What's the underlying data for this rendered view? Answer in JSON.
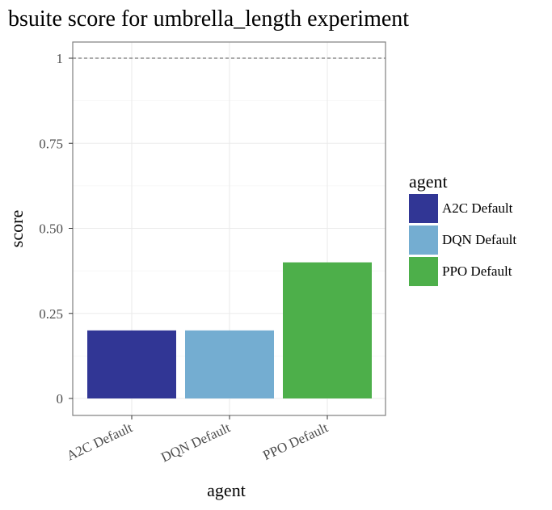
{
  "chart_data": {
    "type": "bar",
    "title": "bsuite score for umbrella_length experiment",
    "xlabel": "agent",
    "ylabel": "score",
    "categories": [
      "A2C Default",
      "DQN Default",
      "PPO Default"
    ],
    "values": [
      0.2,
      0.2,
      0.4
    ],
    "colors": [
      "#313695",
      "#74add1",
      "#4daf4a"
    ],
    "ylim": [
      0,
      1
    ],
    "yticks": [
      0,
      0.25,
      0.5,
      0.75,
      1
    ],
    "ytick_labels": [
      "0",
      "0.25",
      "0.50",
      "0.75",
      "1"
    ],
    "reference_line": {
      "value": 1,
      "style": "dashed"
    },
    "grid": true,
    "legend": {
      "title": "agent",
      "placement": "right",
      "entries": [
        "A2C Default",
        "DQN Default",
        "PPO Default"
      ]
    }
  }
}
